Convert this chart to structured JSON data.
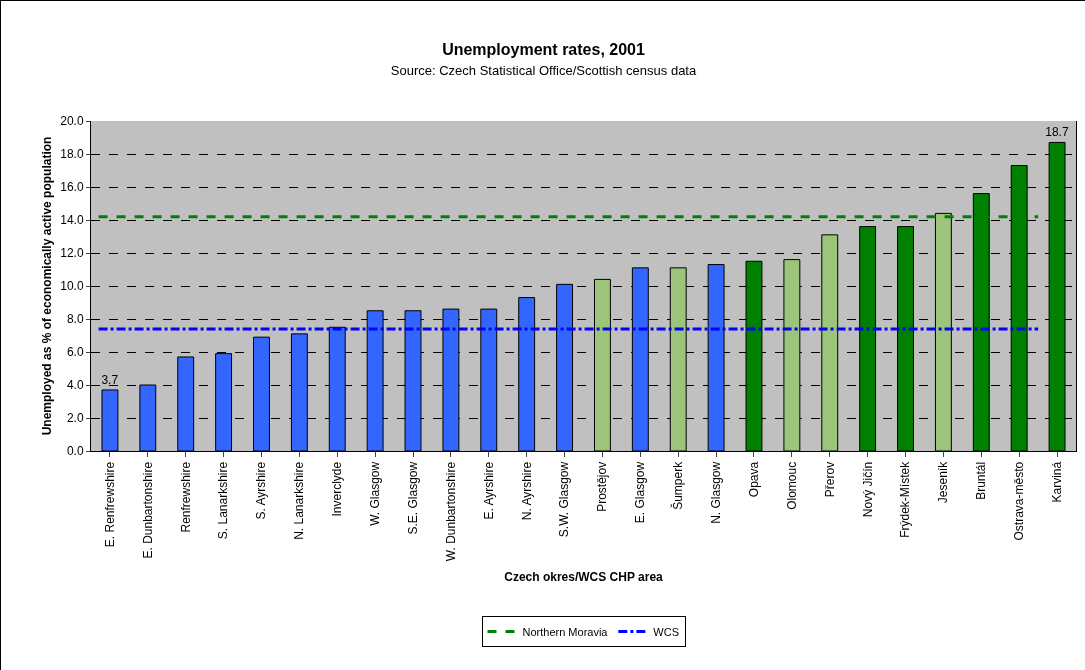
{
  "chart_data": {
    "type": "bar",
    "title": "Unemployment rates, 2001",
    "subtitle": "Source: Czech Statistical Office/Scottish census data",
    "xlabel": "Czech okres/WCS CHP area",
    "ylabel": "Unemployed as % of economically active population",
    "categories": [
      "E. Renfrewshire",
      "E. Dunbartonshire",
      "Renfrewshire",
      "S. Lanarkshire",
      "S. Ayrshire",
      "N. Lanarkshire",
      "Inverclyde",
      "W. Glasgow",
      "S.E. Glasgow",
      "W. Dunbartonshire",
      "E. Ayrshire",
      "N. Ayrshire",
      "S.W. Glasgow",
      "Prostějov",
      "E. Glasgow",
      "Šumperk",
      "N. Glasgow",
      "Opava",
      "Olomouc",
      "Přerov",
      "Nový Jičín",
      "Frýdek-Místek",
      "Jeseník",
      "Bruntál",
      "Ostrava-město",
      "Karviná"
    ],
    "values": [
      3.7,
      4.0,
      5.7,
      5.9,
      6.9,
      7.1,
      7.5,
      8.5,
      8.5,
      8.6,
      8.6,
      9.3,
      10.1,
      10.4,
      11.1,
      11.1,
      11.3,
      11.5,
      11.6,
      13.1,
      13.6,
      13.6,
      14.4,
      15.6,
      17.3,
      18.7
    ],
    "colors": [
      "#3366ff",
      "#3366ff",
      "#3366ff",
      "#3366ff",
      "#3366ff",
      "#3366ff",
      "#3366ff",
      "#3366ff",
      "#3366ff",
      "#3366ff",
      "#3366ff",
      "#3366ff",
      "#3366ff",
      "#9cc47a",
      "#3366ff",
      "#9cc47a",
      "#3366ff",
      "#008000",
      "#9cc47a",
      "#9cc47a",
      "#008000",
      "#008000",
      "#9cc47a",
      "#008000",
      "#008000",
      "#008000"
    ],
    "value_labels": [
      "3.7",
      null,
      null,
      null,
      null,
      null,
      null,
      null,
      null,
      null,
      null,
      null,
      null,
      null,
      null,
      null,
      null,
      null,
      null,
      null,
      null,
      null,
      null,
      null,
      null,
      "18.7"
    ],
    "ylim": [
      0,
      20
    ],
    "yticks": [
      {
        "value": 0,
        "label": "0.0"
      },
      {
        "value": 2,
        "label": "2.0"
      },
      {
        "value": 4,
        "label": "4.0"
      },
      {
        "value": 6,
        "label": "6.0"
      },
      {
        "value": 8,
        "label": "8.0"
      },
      {
        "value": 10,
        "label": "10.0"
      },
      {
        "value": 12,
        "label": "12.0"
      },
      {
        "value": 14,
        "label": "14.0"
      },
      {
        "value": 16,
        "label": "16.0"
      },
      {
        "value": 18,
        "label": "18.0"
      },
      {
        "value": 20,
        "label": "20.0"
      }
    ],
    "ref_lines": [
      {
        "axis": "y",
        "value": 14.2,
        "label": "Northern Moravia",
        "color": "#008000",
        "line_style": "dashed"
      },
      {
        "axis": "y",
        "value": 7.4,
        "label": "WCS",
        "color": "#0000ff",
        "line_style": "dashdot"
      }
    ],
    "grid": "y",
    "legend": "bottom"
  }
}
